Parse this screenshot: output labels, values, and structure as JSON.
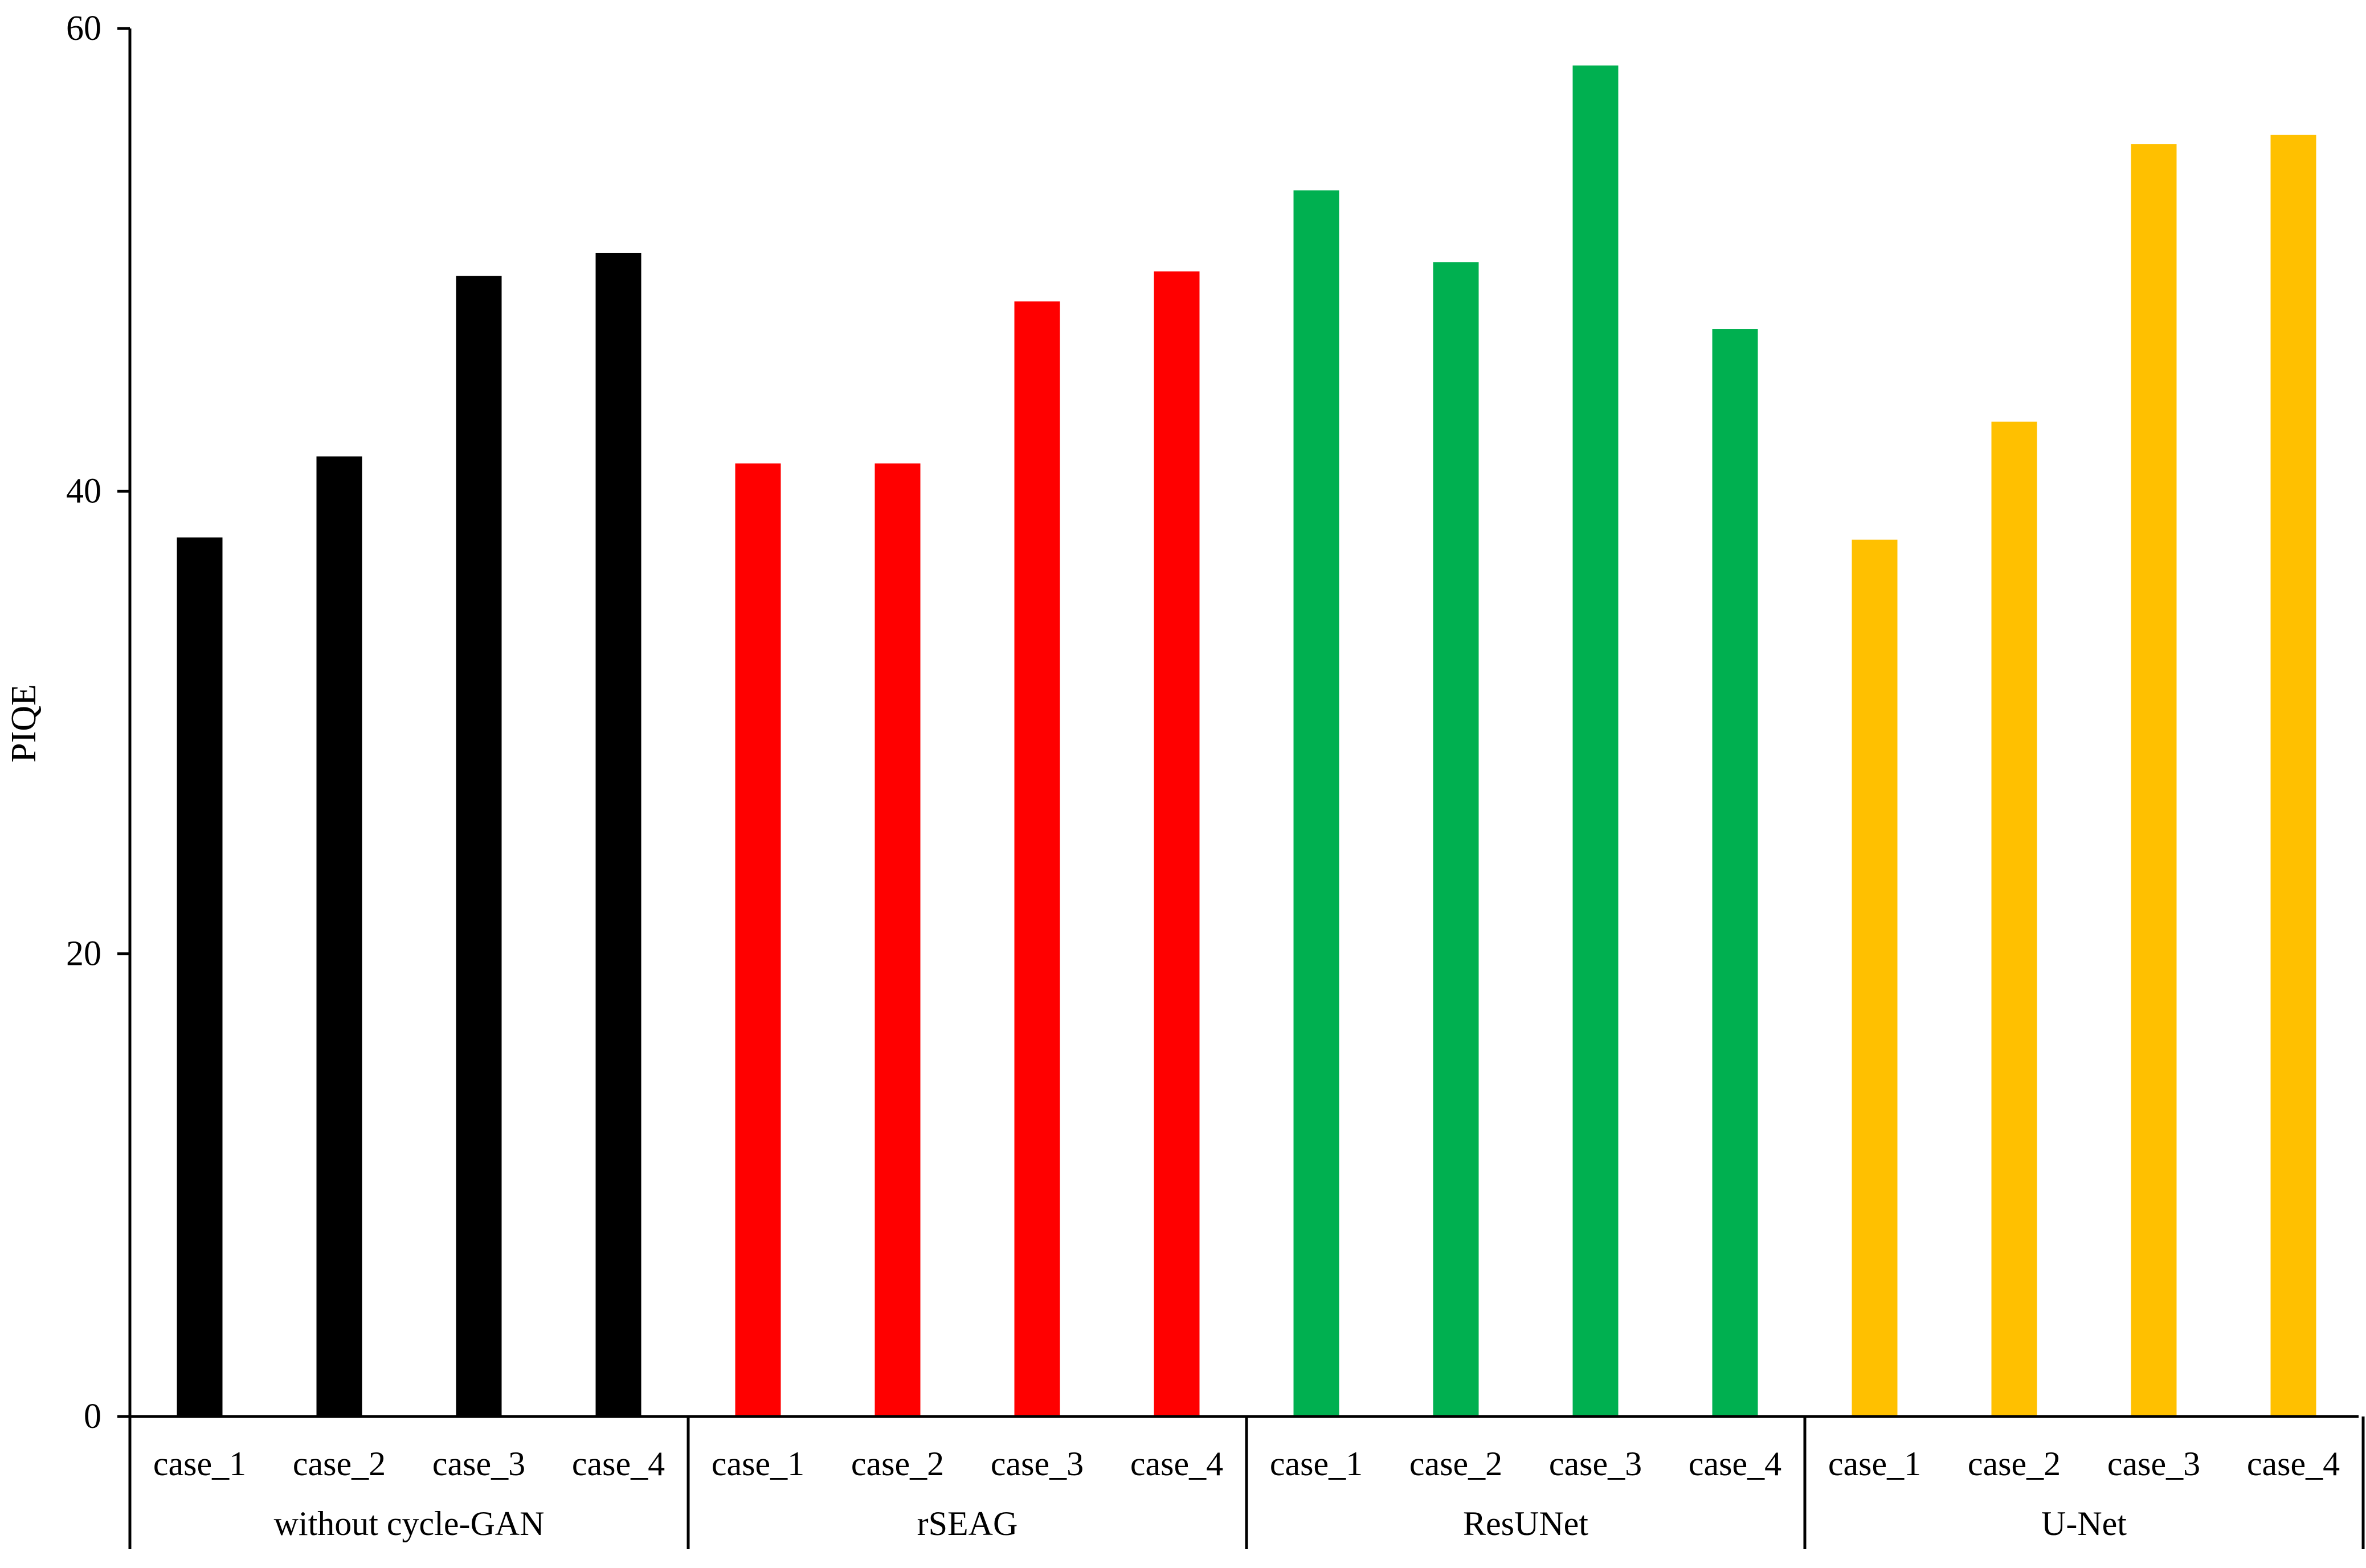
{
  "chart_data": {
    "type": "bar",
    "title": "",
    "xlabel": "",
    "ylabel": "PIQE",
    "ylim": [
      0,
      60
    ],
    "yticks": [
      0,
      20,
      40,
      60
    ],
    "grid": false,
    "legend": "none",
    "groups": [
      {
        "name": "without cycle-GAN",
        "color": "#000000",
        "categories": [
          "case_1",
          "case_2",
          "case_3",
          "case_4"
        ],
        "values": [
          38.0,
          41.5,
          49.3,
          50.3
        ]
      },
      {
        "name": "rSEAG",
        "color": "#ff0000",
        "categories": [
          "case_1",
          "case_2",
          "case_3",
          "case_4"
        ],
        "values": [
          41.2,
          41.2,
          48.2,
          49.5
        ]
      },
      {
        "name": "ResUNet",
        "color": "#00b050",
        "categories": [
          "case_1",
          "case_2",
          "case_3",
          "case_4"
        ],
        "values": [
          53.0,
          49.9,
          58.4,
          47.0
        ]
      },
      {
        "name": "U-Net",
        "color": "#ffc000",
        "categories": [
          "case_1",
          "case_2",
          "case_3",
          "case_4"
        ],
        "values": [
          37.9,
          43.0,
          55.0,
          55.4
        ]
      }
    ]
  }
}
